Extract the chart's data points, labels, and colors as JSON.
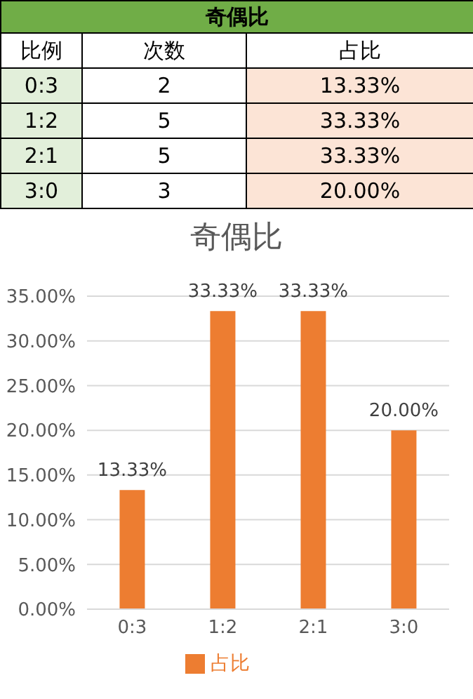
{
  "chart_data": [
    {
      "type": "other",
      "title": "奇偶比",
      "xlabel": "比例",
      "categories": [
        "0:3",
        "1:2",
        "2:1",
        "3:0"
      ],
      "data_labels": true,
      "series": [
        {
          "name": "次数",
          "values": [
            2,
            5,
            5,
            3
          ]
        },
        {
          "name": "占比",
          "values": [
            13.33,
            33.33,
            33.33,
            20.0
          ],
          "value_labels": [
            "13.33%",
            "33.33%",
            "33.33%",
            "20.00%"
          ]
        }
      ]
    },
    {
      "type": "bar",
      "title": "奇偶比",
      "categories": [
        "0:3",
        "1:2",
        "2:1",
        "3:0"
      ],
      "series": [
        {
          "name": "占比",
          "color": "#ed7d31",
          "values": [
            13.33,
            33.33,
            33.33,
            20.0
          ],
          "value_labels": [
            "13.33%",
            "33.33%",
            "33.33%",
            "20.00%"
          ]
        }
      ],
      "ylim": [
        0,
        35
      ],
      "yticks": [
        {
          "value": 0,
          "label": "0.00%"
        },
        {
          "value": 5,
          "label": "5.00%"
        },
        {
          "value": 10,
          "label": "10.00%"
        },
        {
          "value": 15,
          "label": "15.00%"
        },
        {
          "value": 20,
          "label": "20.00%"
        },
        {
          "value": 25,
          "label": "25.00%"
        },
        {
          "value": 30,
          "label": "30.00%"
        },
        {
          "value": 35,
          "label": "35.00%"
        }
      ],
      "grid": "y",
      "legend": "bottom"
    }
  ]
}
